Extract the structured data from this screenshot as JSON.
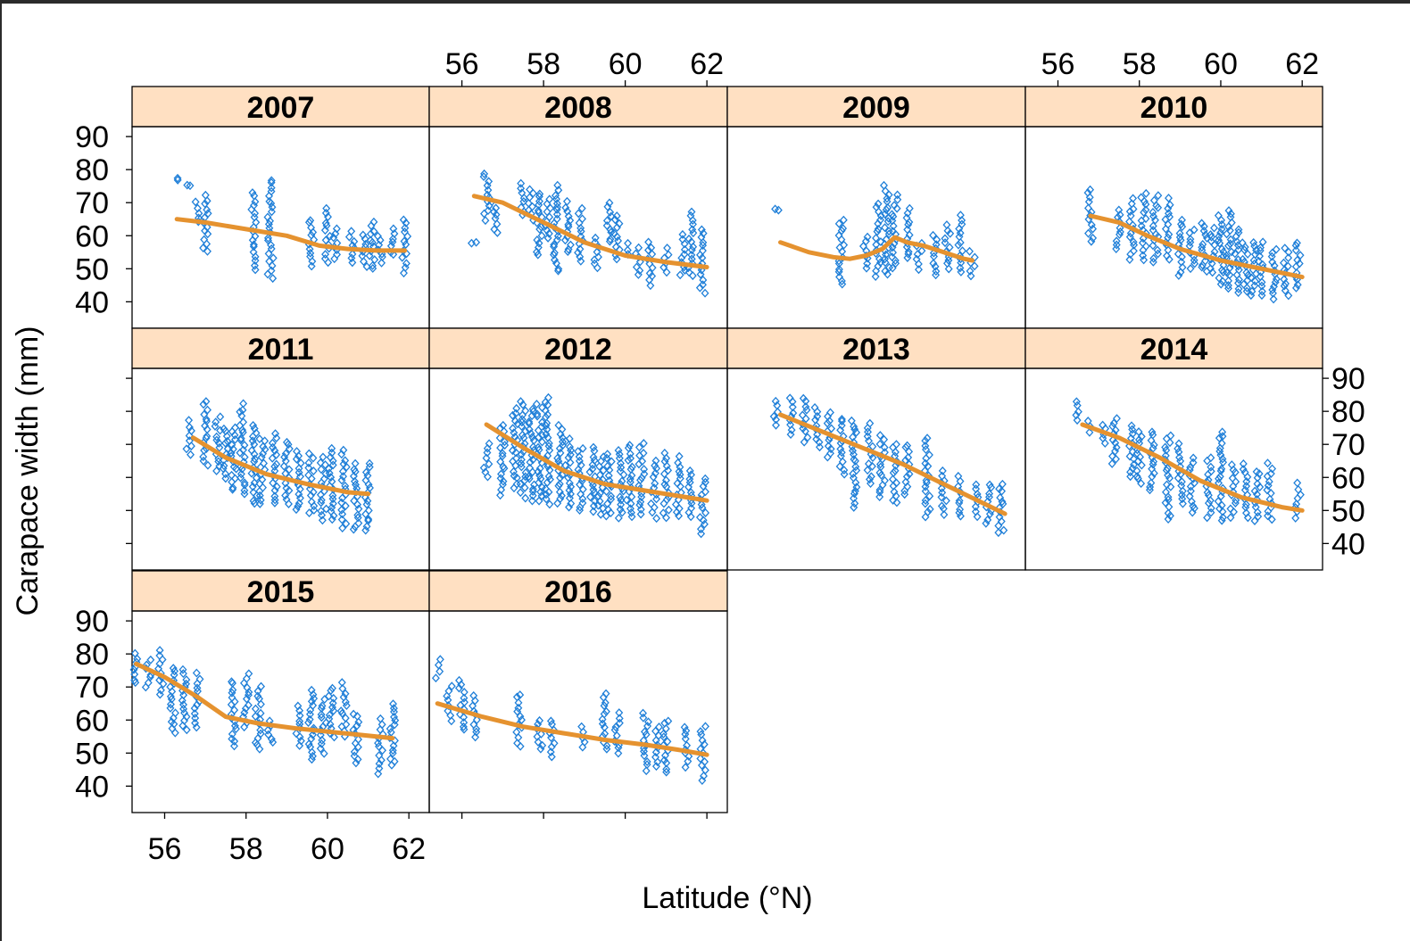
{
  "colors": {
    "points": "#1f7fd8",
    "smooth": "#e5922f",
    "strip": "#ffe0c2"
  },
  "chart_data": {
    "type": "scatter",
    "layout": "lattice panels by year, 4 columns x 3 rows, loess smooth in each panel",
    "xlabel": "Latitude (°N)",
    "ylabel": "Carapace width (mm)",
    "xlim": [
      55.2,
      62.5
    ],
    "ylim": [
      32,
      93
    ],
    "xticks": [
      56,
      58,
      60,
      62
    ],
    "yticks": [
      40,
      50,
      60,
      70,
      80,
      90
    ],
    "marker": "open diamond",
    "panels": [
      {
        "year": "2007",
        "smooth": [
          [
            56.3,
            65
          ],
          [
            57,
            64
          ],
          [
            58,
            62
          ],
          [
            59,
            60
          ],
          [
            59.8,
            57
          ],
          [
            60.5,
            56
          ],
          [
            61.2,
            55.5
          ],
          [
            61.9,
            55.5
          ]
        ],
        "clusters": [
          [
            56.3,
            77,
            77
          ],
          [
            56.6,
            75,
            75
          ],
          [
            56.8,
            64,
            70
          ],
          [
            57.0,
            55,
            72
          ],
          [
            58.2,
            50,
            73
          ],
          [
            58.6,
            47,
            77
          ],
          [
            59.6,
            51,
            65
          ],
          [
            60.0,
            52,
            68
          ],
          [
            60.2,
            53,
            62
          ],
          [
            60.6,
            52,
            61
          ],
          [
            60.9,
            51,
            60
          ],
          [
            61.1,
            50,
            64
          ],
          [
            61.3,
            52,
            60
          ],
          [
            61.6,
            54,
            62
          ],
          [
            61.9,
            49,
            65
          ]
        ]
      },
      {
        "year": "2008",
        "smooth": [
          [
            56.3,
            72
          ],
          [
            57,
            70
          ],
          [
            58,
            64
          ],
          [
            59,
            58
          ],
          [
            60,
            54
          ],
          [
            61,
            52
          ],
          [
            62,
            50.5
          ]
        ],
        "clusters": [
          [
            56.3,
            58,
            58
          ],
          [
            56.6,
            65,
            79
          ],
          [
            56.8,
            61,
            70
          ],
          [
            57.5,
            66,
            76
          ],
          [
            57.7,
            65,
            74
          ],
          [
            57.9,
            54,
            73
          ],
          [
            58.1,
            59,
            71
          ],
          [
            58.3,
            49,
            75
          ],
          [
            58.6,
            55,
            70
          ],
          [
            58.9,
            52,
            68
          ],
          [
            59.3,
            50,
            59
          ],
          [
            59.6,
            58,
            70
          ],
          [
            59.8,
            53,
            66
          ],
          [
            60.0,
            54,
            58
          ],
          [
            60.3,
            48,
            56
          ],
          [
            60.6,
            45,
            58
          ],
          [
            61.0,
            49,
            56
          ],
          [
            61.4,
            48,
            60
          ],
          [
            61.6,
            48,
            67
          ],
          [
            61.9,
            43,
            62
          ]
        ]
      },
      {
        "year": "2009",
        "smooth": [
          [
            56.5,
            58
          ],
          [
            57.2,
            55
          ],
          [
            57.8,
            53.5
          ],
          [
            58.2,
            53
          ],
          [
            58.6,
            54
          ],
          [
            59,
            56
          ],
          [
            59.3,
            59.5
          ],
          [
            59.6,
            58
          ],
          [
            60,
            57
          ],
          [
            60.5,
            55
          ],
          [
            61,
            53
          ],
          [
            61.2,
            52.5
          ]
        ],
        "clusters": [
          [
            56.4,
            68,
            68
          ],
          [
            58.0,
            45,
            65
          ],
          [
            58.6,
            50,
            60
          ],
          [
            58.9,
            48,
            70
          ],
          [
            59.1,
            48,
            75
          ],
          [
            59.3,
            50,
            72
          ],
          [
            59.6,
            53,
            68
          ],
          [
            59.9,
            50,
            58
          ],
          [
            60.3,
            48,
            60
          ],
          [
            60.6,
            50,
            63
          ],
          [
            60.9,
            49,
            66
          ],
          [
            61.2,
            48,
            55
          ]
        ]
      },
      {
        "year": "2010",
        "smooth": [
          [
            56.8,
            66
          ],
          [
            57.5,
            64
          ],
          [
            58.2,
            60
          ],
          [
            59,
            56
          ],
          [
            60,
            52.5
          ],
          [
            61,
            50
          ],
          [
            62,
            47.5
          ]
        ],
        "clusters": [
          [
            56.8,
            58,
            74
          ],
          [
            57.5,
            56,
            68
          ],
          [
            57.8,
            53,
            71
          ],
          [
            58.1,
            53,
            73
          ],
          [
            58.4,
            52,
            72
          ],
          [
            58.7,
            53,
            71
          ],
          [
            59.0,
            48,
            65
          ],
          [
            59.3,
            50,
            62
          ],
          [
            59.6,
            49,
            64
          ],
          [
            59.8,
            49,
            62
          ],
          [
            60.0,
            45,
            66
          ],
          [
            60.2,
            44,
            68
          ],
          [
            60.4,
            43,
            62
          ],
          [
            60.6,
            43,
            58
          ],
          [
            60.8,
            42,
            58
          ],
          [
            61.0,
            42,
            58
          ],
          [
            61.3,
            41,
            56
          ],
          [
            61.6,
            42,
            56
          ],
          [
            61.9,
            44,
            58
          ]
        ]
      },
      {
        "year": "2011",
        "smooth": [
          [
            56.7,
            72
          ],
          [
            57.5,
            66
          ],
          [
            58.5,
            61
          ],
          [
            59.5,
            58
          ],
          [
            60.5,
            55.5
          ],
          [
            61.0,
            55
          ]
        ],
        "clusters": [
          [
            56.6,
            67,
            77
          ],
          [
            57.0,
            64,
            83
          ],
          [
            57.3,
            62,
            78
          ],
          [
            57.5,
            60,
            75
          ],
          [
            57.7,
            56,
            75
          ],
          [
            57.9,
            55,
            82
          ],
          [
            58.2,
            52,
            76
          ],
          [
            58.4,
            52,
            72
          ],
          [
            58.7,
            52,
            73
          ],
          [
            59.0,
            52,
            71
          ],
          [
            59.3,
            50,
            68
          ],
          [
            59.6,
            49,
            67
          ],
          [
            59.9,
            47,
            66
          ],
          [
            60.1,
            47,
            69
          ],
          [
            60.4,
            45,
            68
          ],
          [
            60.7,
            44,
            64
          ],
          [
            61.0,
            44,
            64
          ]
        ]
      },
      {
        "year": "2012",
        "smooth": [
          [
            56.6,
            76
          ],
          [
            57.5,
            69
          ],
          [
            58.5,
            62
          ],
          [
            59.5,
            58
          ],
          [
            60.5,
            56
          ],
          [
            61.5,
            54
          ],
          [
            62.0,
            53
          ]
        ],
        "clusters": [
          [
            56.6,
            60,
            70
          ],
          [
            57.0,
            55,
            76
          ],
          [
            57.3,
            57,
            81
          ],
          [
            57.5,
            54,
            83
          ],
          [
            57.7,
            53,
            81
          ],
          [
            57.9,
            53,
            82
          ],
          [
            58.1,
            52,
            84
          ],
          [
            58.4,
            52,
            76
          ],
          [
            58.6,
            51,
            72
          ],
          [
            58.9,
            50,
            69
          ],
          [
            59.2,
            50,
            69
          ],
          [
            59.4,
            49,
            66
          ],
          [
            59.6,
            48,
            67
          ],
          [
            59.9,
            48,
            68
          ],
          [
            60.1,
            48,
            70
          ],
          [
            60.4,
            49,
            70
          ],
          [
            60.7,
            48,
            65
          ],
          [
            61.0,
            48,
            67
          ],
          [
            61.3,
            48,
            66
          ],
          [
            61.6,
            48,
            62
          ],
          [
            61.9,
            43,
            60
          ]
        ]
      },
      {
        "year": "2013",
        "smooth": [
          [
            56.5,
            79
          ],
          [
            57.5,
            74
          ],
          [
            58.5,
            69
          ],
          [
            59.5,
            64
          ],
          [
            60.5,
            58
          ],
          [
            61.5,
            52
          ],
          [
            62.0,
            49
          ]
        ],
        "clusters": [
          [
            56.4,
            76,
            83
          ],
          [
            56.8,
            73,
            84
          ],
          [
            57.1,
            71,
            84
          ],
          [
            57.4,
            69,
            81
          ],
          [
            57.7,
            66,
            80
          ],
          [
            58.0,
            61,
            78
          ],
          [
            58.3,
            51,
            77
          ],
          [
            58.7,
            58,
            76
          ],
          [
            59.0,
            54,
            73
          ],
          [
            59.3,
            52,
            70
          ],
          [
            59.6,
            55,
            70
          ],
          [
            60.1,
            48,
            72
          ],
          [
            60.5,
            49,
            62
          ],
          [
            60.9,
            48,
            60
          ],
          [
            61.3,
            48,
            58
          ],
          [
            61.6,
            46,
            58
          ],
          [
            61.9,
            43,
            58
          ]
        ]
      },
      {
        "year": "2014",
        "smooth": [
          [
            56.6,
            76
          ],
          [
            57.5,
            72
          ],
          [
            58.5,
            66
          ],
          [
            59.5,
            59
          ],
          [
            60.5,
            54
          ],
          [
            61.5,
            51
          ],
          [
            62.0,
            50
          ]
        ],
        "clusters": [
          [
            56.5,
            77,
            83
          ],
          [
            56.8,
            74,
            77
          ],
          [
            57.1,
            70,
            76
          ],
          [
            57.4,
            64,
            78
          ],
          [
            57.8,
            60,
            76
          ],
          [
            58.0,
            58,
            74
          ],
          [
            58.3,
            56,
            74
          ],
          [
            58.7,
            47,
            73
          ],
          [
            59.0,
            52,
            70
          ],
          [
            59.3,
            49,
            66
          ],
          [
            59.7,
            48,
            66
          ],
          [
            60.0,
            47,
            74
          ],
          [
            60.3,
            48,
            64
          ],
          [
            60.6,
            48,
            64
          ],
          [
            60.9,
            47,
            62
          ],
          [
            61.2,
            47,
            64
          ],
          [
            61.9,
            48,
            58
          ]
        ]
      },
      {
        "year": "2015",
        "smooth": [
          [
            55.3,
            77
          ],
          [
            56,
            73
          ],
          [
            56.8,
            67
          ],
          [
            57.5,
            61
          ],
          [
            58.3,
            59
          ],
          [
            59.2,
            57.5
          ],
          [
            60,
            56.5
          ],
          [
            60.8,
            55.5
          ],
          [
            61.6,
            54.5
          ]
        ],
        "clusters": [
          [
            55.3,
            71,
            80
          ],
          [
            55.6,
            70,
            78
          ],
          [
            55.9,
            68,
            81
          ],
          [
            56.2,
            56,
            76
          ],
          [
            56.5,
            57,
            75
          ],
          [
            56.8,
            58,
            74
          ],
          [
            57.7,
            52,
            72
          ],
          [
            58.0,
            58,
            74
          ],
          [
            58.3,
            51,
            70
          ],
          [
            58.6,
            53,
            60
          ],
          [
            59.3,
            52,
            64
          ],
          [
            59.6,
            48,
            69
          ],
          [
            59.9,
            50,
            66
          ],
          [
            60.1,
            55,
            70
          ],
          [
            60.4,
            55,
            71
          ],
          [
            60.7,
            47,
            62
          ],
          [
            61.3,
            44,
            60
          ],
          [
            61.6,
            46,
            65
          ]
        ]
      },
      {
        "year": "2016",
        "smooth": [
          [
            55.4,
            65
          ],
          [
            56.5,
            61
          ],
          [
            57.5,
            58
          ],
          [
            58.5,
            56
          ],
          [
            59.5,
            54
          ],
          [
            60.5,
            52.5
          ],
          [
            61.3,
            51
          ],
          [
            62.0,
            49.5
          ]
        ],
        "clusters": [
          [
            55.4,
            73,
            78
          ],
          [
            55.7,
            60,
            70
          ],
          [
            56.0,
            57,
            72
          ],
          [
            56.3,
            55,
            67
          ],
          [
            57.4,
            52,
            68
          ],
          [
            57.9,
            51,
            60
          ],
          [
            58.2,
            49,
            60
          ],
          [
            59.0,
            52,
            58
          ],
          [
            59.5,
            51,
            68
          ],
          [
            59.8,
            50,
            62
          ],
          [
            60.5,
            45,
            62
          ],
          [
            60.8,
            46,
            58
          ],
          [
            61.0,
            44,
            60
          ],
          [
            61.5,
            46,
            58
          ],
          [
            61.9,
            42,
            58
          ]
        ]
      }
    ]
  }
}
